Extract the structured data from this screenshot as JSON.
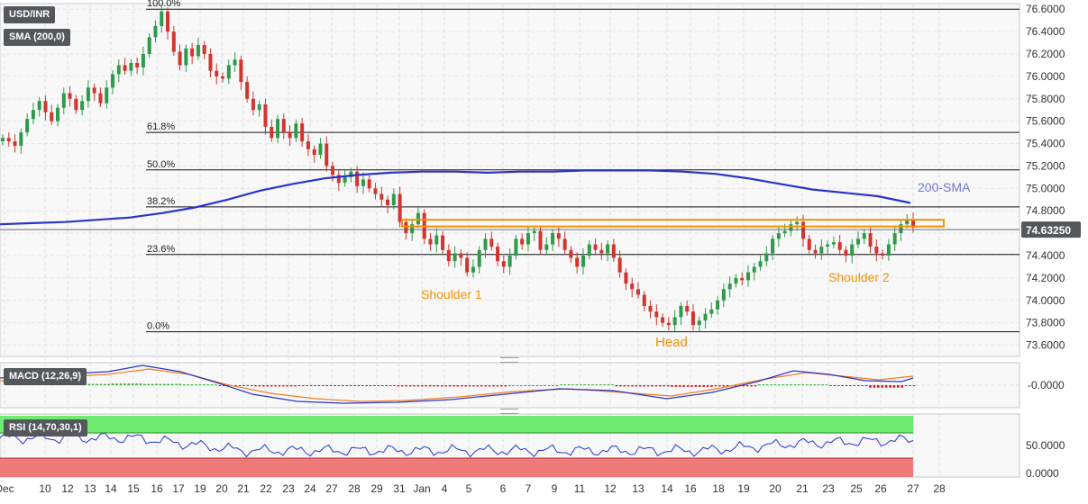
{
  "instrument": "USD/INR",
  "indicators": {
    "sma": "SMA (200,0)",
    "macd": "MACD (12,26,9)",
    "rsi": "RSI (14,70,30,1)"
  },
  "colors": {
    "bull": "#2e9a4a",
    "bear": "#d2352f",
    "sma": "#2a34c8",
    "sma_label": "#6f78d8",
    "resistance": "#f39200",
    "annotation": "#f39200",
    "macd_line": "#2a34c8",
    "signal_line": "#f07e1e",
    "hist_pos": "#22b322",
    "hist_neg": "#e01010",
    "rsi_over": "#6fec6f",
    "rsi_under": "#f07a7a",
    "rsi_line": "#2a34c8",
    "price_tag": "#54585d"
  },
  "chart_data": [
    {
      "type": "candlestick",
      "title": "USD/INR",
      "current_price": "74.63250",
      "ylim": [
        73.5,
        76.65
      ],
      "y_ticks": [
        "76.6000",
        "76.4000",
        "76.2000",
        "76.0000",
        "75.8000",
        "75.6000",
        "75.4000",
        "75.2000",
        "75.0000",
        "74.8000",
        "74.6000",
        "74.4000",
        "74.2000",
        "74.0000",
        "73.8000",
        "73.6000"
      ],
      "x_ticks": [
        "Dec",
        "10",
        "12",
        "13",
        "14",
        "15",
        "16",
        "17",
        "19",
        "20",
        "21",
        "22",
        "23",
        "24",
        "27",
        "28",
        "29",
        "31",
        "Jan",
        "4",
        "5",
        "6",
        "7",
        "9",
        "11",
        "12",
        "13",
        "14",
        "16",
        "18",
        "19",
        "20",
        "21",
        "23",
        "25",
        "26",
        "27",
        "28"
      ],
      "fibonacci": [
        {
          "label": "100.0%",
          "value": 76.6
        },
        {
          "label": "61.8%",
          "value": 75.5
        },
        {
          "label": "50.0%",
          "value": 75.165
        },
        {
          "label": "38.2%",
          "value": 74.835
        },
        {
          "label": "23.6%",
          "value": 74.41
        },
        {
          "label": "0.0%",
          "value": 73.72
        }
      ],
      "resistance_zone": [
        74.66,
        74.72
      ],
      "annotations": [
        "Shoulder 1",
        "Head",
        "Shoulder 2",
        "200-SMA"
      ],
      "closes": [
        75.45,
        75.42,
        75.38,
        75.5,
        75.62,
        75.7,
        75.78,
        75.68,
        75.6,
        75.72,
        75.85,
        75.8,
        75.7,
        75.78,
        75.9,
        75.85,
        75.76,
        75.9,
        76.02,
        76.1,
        76.05,
        76.12,
        76.08,
        76.2,
        76.35,
        76.45,
        76.58,
        76.4,
        76.22,
        76.1,
        76.25,
        76.18,
        76.28,
        76.2,
        76.05,
        76.0,
        75.98,
        76.1,
        76.15,
        75.95,
        75.8,
        75.7,
        75.75,
        75.55,
        75.45,
        75.62,
        75.5,
        75.45,
        75.58,
        75.42,
        75.35,
        75.3,
        75.4,
        75.2,
        75.12,
        75.05,
        75.1,
        75.15,
        75.02,
        75.08,
        75.0,
        74.95,
        74.9,
        74.85,
        74.95,
        74.7,
        74.6,
        74.68,
        74.78,
        74.55,
        74.5,
        74.58,
        74.45,
        74.35,
        74.42,
        74.38,
        74.25,
        74.3,
        74.45,
        74.55,
        74.48,
        74.35,
        74.3,
        74.4,
        74.55,
        74.5,
        74.6,
        74.62,
        74.45,
        74.5,
        74.6,
        74.55,
        74.45,
        74.38,
        74.3,
        74.4,
        74.5,
        74.45,
        74.42,
        74.5,
        74.38,
        74.25,
        74.15,
        74.1,
        74.05,
        73.95,
        73.9,
        73.85,
        73.8,
        73.78,
        73.85,
        73.95,
        73.9,
        73.78,
        73.82,
        73.88,
        73.92,
        74.0,
        74.1,
        74.15,
        74.2,
        74.18,
        74.25,
        74.3,
        74.35,
        74.42,
        74.55,
        74.6,
        74.62,
        74.68,
        74.7,
        74.55,
        74.45,
        74.42,
        74.48,
        74.5,
        74.52,
        74.45,
        74.4,
        74.5,
        74.55,
        74.6,
        74.48,
        74.42,
        74.4,
        74.5,
        74.6,
        74.68,
        74.72,
        74.65
      ],
      "sma_200": [
        74.68,
        74.69,
        74.7,
        74.72,
        74.74,
        74.78,
        74.83,
        74.9,
        74.98,
        75.04,
        75.09,
        75.12,
        75.14,
        75.15,
        75.15,
        75.14,
        75.15,
        75.15,
        75.16,
        75.16,
        75.16,
        75.15,
        75.13,
        75.09,
        75.04,
        74.99,
        74.96,
        74.93,
        74.87
      ]
    },
    {
      "type": "line",
      "title": "MACD (12,26,9)",
      "y_ticks": [
        "-0.0000"
      ],
      "series": [
        {
          "name": "MACD"
        },
        {
          "name": "Signal"
        },
        {
          "name": "Histogram"
        }
      ]
    },
    {
      "type": "line",
      "title": "RSI (14,70,30,1)",
      "y_ticks": [
        "50.0000",
        "0.0000"
      ],
      "ylim": [
        0,
        100
      ]
    }
  ]
}
